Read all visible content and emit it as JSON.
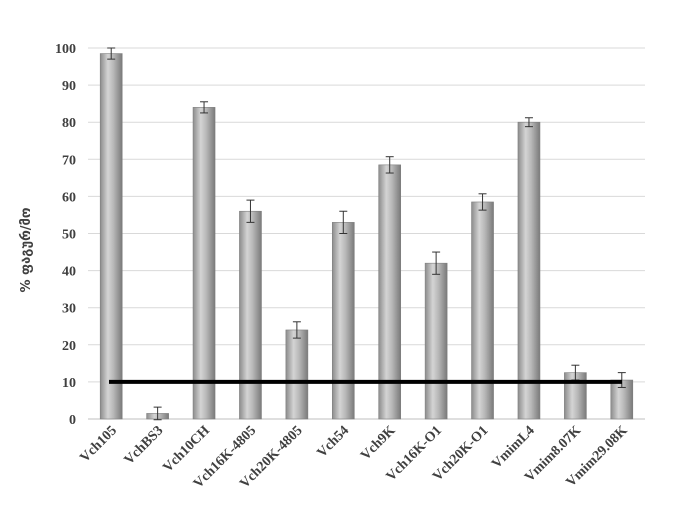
{
  "chart_data": {
    "type": "bar",
    "title": "",
    "xlabel": "",
    "ylabel": "% ფაგურ/მო",
    "ylim": [
      0,
      100
    ],
    "yticks": [
      0,
      10,
      20,
      30,
      40,
      50,
      60,
      70,
      80,
      90,
      100
    ],
    "categories": [
      "Vch105",
      "VchBS3",
      "Vch10CH",
      "Vch16K-4805",
      "Vch20K-4805",
      "Vch54",
      "Vch9K",
      "Vch16K-O1",
      "Vch20K-O1",
      "VmimL4",
      "Vmim8.07K",
      "Vmim29.08K"
    ],
    "values": [
      98.5,
      1.5,
      84,
      56,
      24,
      53,
      68.5,
      42,
      58.5,
      80,
      12.5,
      10.5
    ],
    "errors": [
      1.5,
      1.7,
      1.5,
      3,
      2.2,
      3,
      2.2,
      3,
      2.2,
      1.2,
      2,
      2
    ],
    "threshold": 10,
    "grid": true,
    "colors": {
      "bar": "#a9a9a9",
      "bar_edge": "#7f7f7f",
      "threshold": "#000000",
      "grid": "#d9d9d9",
      "axis": "#bfbfbf"
    }
  }
}
